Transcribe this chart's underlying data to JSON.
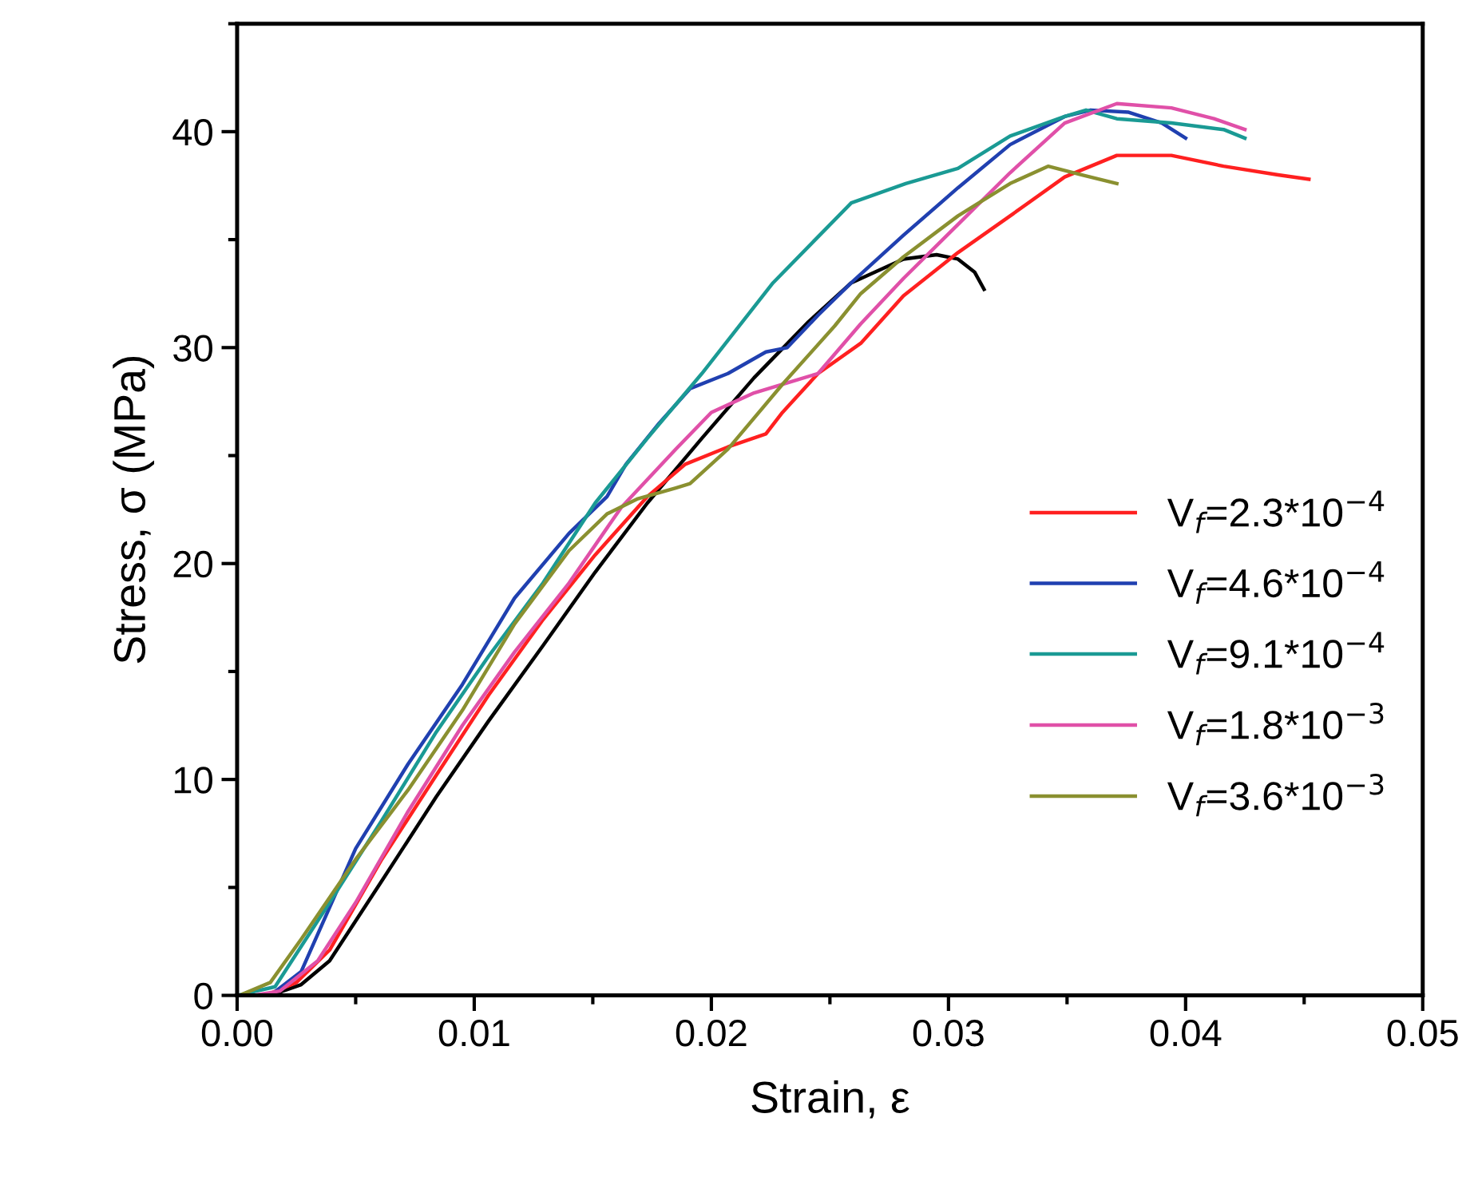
{
  "chart_data": {
    "type": "line",
    "xlabel": "Strain, ε",
    "ylabel": "Stress, σ (MPa)",
    "xlim": [
      0,
      0.05
    ],
    "ylim": [
      0,
      45
    ],
    "xticks": [
      {
        "value": 0,
        "label": "0.00"
      },
      {
        "value": 0.01,
        "label": "0.01"
      },
      {
        "value": 0.02,
        "label": "0.02"
      },
      {
        "value": 0.03,
        "label": "0.03"
      },
      {
        "value": 0.04,
        "label": "0.04"
      },
      {
        "value": 0.05,
        "label": "0.05"
      }
    ],
    "yticks": [
      0,
      10,
      20,
      30,
      40
    ],
    "grid": false,
    "legend": "right",
    "line_style": "solid",
    "marker": "none",
    "series": [
      {
        "color": "#000000",
        "x": [
          0.0014,
          0.0027,
          0.0039,
          0.0061,
          0.0084,
          0.0106,
          0.0129,
          0.0151,
          0.0173,
          0.0196,
          0.0218,
          0.0241,
          0.0259,
          0.0281,
          0.0295,
          0.0304,
          0.0311,
          0.0315
        ],
        "values": [
          0,
          0.5,
          1.6,
          5.3,
          9.2,
          12.7,
          16.2,
          19.6,
          22.8,
          25.8,
          28.6,
          31.2,
          33.0,
          34.1,
          34.3,
          34.1,
          33.5,
          32.7
        ]
      },
      {
        "name": "V$_{f}$=2.3*10$^{−4}$",
        "color": "#ff2020",
        "x": [
          0.0012,
          0.0025,
          0.0039,
          0.0061,
          0.0084,
          0.0106,
          0.0129,
          0.0151,
          0.0173,
          0.0189,
          0.0207,
          0.0223,
          0.023,
          0.0245,
          0.0263,
          0.0281,
          0.0304,
          0.0326,
          0.0349,
          0.0371,
          0.0394,
          0.0416,
          0.0439,
          0.0452
        ],
        "values": [
          0,
          0.6,
          2.1,
          6.3,
          10.2,
          13.9,
          17.4,
          20.4,
          23.1,
          24.6,
          25.4,
          26.0,
          27.0,
          28.8,
          30.2,
          32.4,
          34.4,
          36.1,
          37.9,
          38.9,
          38.9,
          38.4,
          38.0,
          37.8
        ]
      },
      {
        "name": "V$_{f}$=4.6*10$^{−4}$",
        "color": "#2040b0",
        "x": [
          0.0014,
          0.0027,
          0.005,
          0.0072,
          0.0095,
          0.0117,
          0.014,
          0.0156,
          0.0164,
          0.0178,
          0.0191,
          0.0207,
          0.0223,
          0.0232,
          0.0245,
          0.0259,
          0.0281,
          0.0304,
          0.0326,
          0.0349,
          0.036,
          0.0376,
          0.039,
          0.04
        ],
        "values": [
          0,
          1.1,
          6.8,
          10.7,
          14.4,
          18.4,
          21.4,
          23.1,
          24.6,
          26.5,
          28.1,
          28.8,
          29.8,
          30.0,
          31.5,
          33.0,
          35.2,
          37.4,
          39.4,
          40.7,
          41.0,
          40.9,
          40.4,
          39.7
        ]
      },
      {
        "name": "V$_{f}$=9.1*10$^{−4}$",
        "color": "#1a9a94",
        "x": [
          0,
          0.0016,
          0.0039,
          0.0061,
          0.0084,
          0.0106,
          0.0129,
          0.0151,
          0.0173,
          0.0196,
          0.0226,
          0.0259,
          0.0282,
          0.0304,
          0.0326,
          0.0349,
          0.0358,
          0.0371,
          0.0394,
          0.0416,
          0.0425
        ],
        "values": [
          0,
          0.4,
          4.3,
          8.1,
          12.2,
          15.7,
          19.1,
          22.8,
          25.8,
          28.8,
          33.0,
          36.7,
          37.6,
          38.3,
          39.8,
          40.7,
          41.0,
          40.6,
          40.4,
          40.1,
          39.7
        ]
      },
      {
        "name": "V$_{f}$=1.8*10$^{−3}$",
        "color": "#e050a8",
        "x": [
          0.0007,
          0.0018,
          0.0034,
          0.005,
          0.0072,
          0.0095,
          0.0117,
          0.014,
          0.0162,
          0.0185,
          0.02,
          0.0218,
          0.0236,
          0.0245,
          0.0263,
          0.0281,
          0.0304,
          0.0326,
          0.0349,
          0.0371,
          0.0394,
          0.0412,
          0.0425
        ],
        "values": [
          0,
          0.2,
          1.6,
          4.3,
          8.5,
          12.5,
          15.9,
          19.1,
          22.6,
          25.3,
          27.0,
          27.9,
          28.5,
          28.8,
          31.1,
          33.2,
          35.7,
          38.1,
          40.4,
          41.3,
          41.1,
          40.6,
          40.1
        ]
      },
      {
        "name": "V$_{f}$=3.6*10$^{−3}$",
        "color": "#8a9030",
        "x": [
          0.0001,
          0.0014,
          0.0027,
          0.005,
          0.0072,
          0.0095,
          0.0117,
          0.014,
          0.0156,
          0.0169,
          0.0185,
          0.0191,
          0.0207,
          0.023,
          0.0252,
          0.0263,
          0.0281,
          0.0304,
          0.0326,
          0.0342,
          0.0356,
          0.0371
        ],
        "values": [
          0,
          0.6,
          2.6,
          6.3,
          9.5,
          13.2,
          17.2,
          20.6,
          22.3,
          23.0,
          23.5,
          23.7,
          25.3,
          28.3,
          31.0,
          32.5,
          34.2,
          36.1,
          37.6,
          38.4,
          38.0,
          37.6
        ]
      }
    ]
  }
}
